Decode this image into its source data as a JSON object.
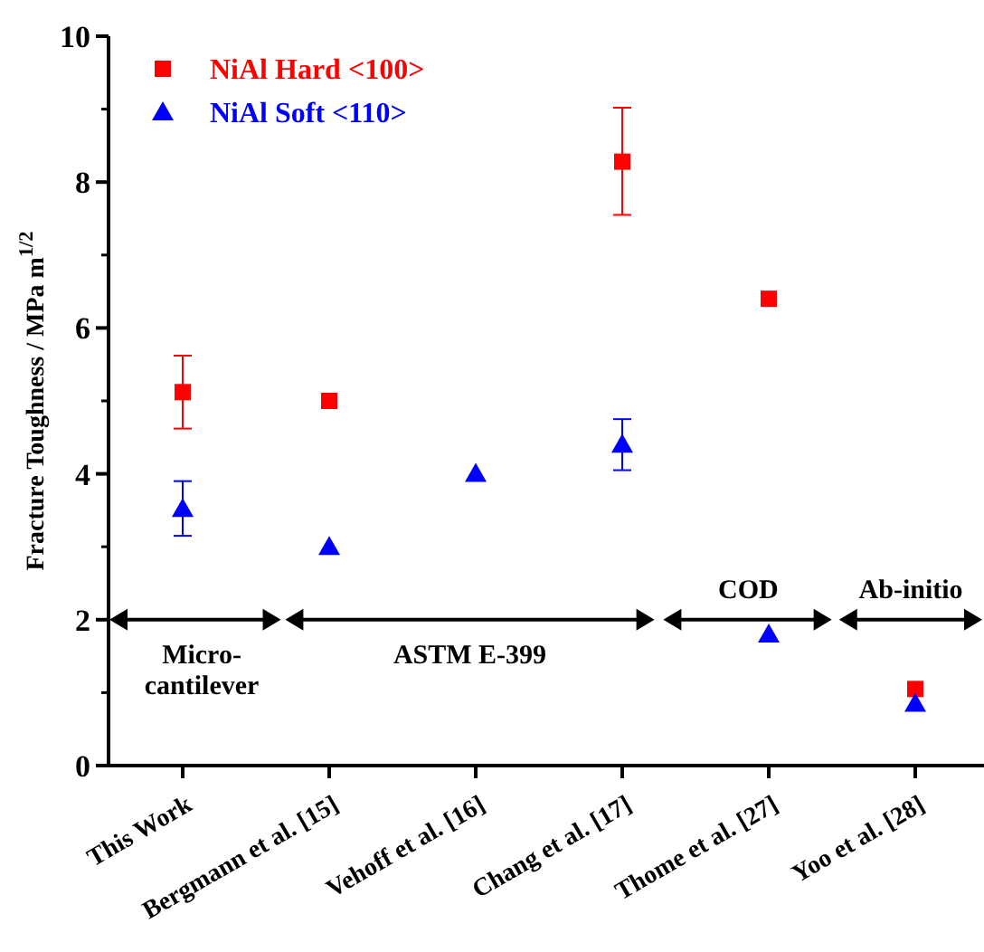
{
  "chart_data": {
    "type": "scatter",
    "ylabel": "Fracture Toughness / MPa m$^{1/2}$",
    "categories": [
      "This Work",
      "Bergmann et al. [15]",
      "Vehoff et al. [16]",
      "Chang et al. [17]",
      "Thome et al. [27]",
      "Yoo et al. [28]"
    ],
    "series": [
      {
        "name": "NiAl Hard <100>",
        "color": "#ff0000",
        "marker": "square",
        "values": [
          5.12,
          5.0,
          null,
          8.28,
          6.4,
          1.05
        ],
        "errors": [
          [
            4.62,
            5.62
          ],
          null,
          null,
          [
            7.55,
            9.02
          ],
          null,
          null
        ]
      },
      {
        "name": "NiAl Soft <110>",
        "color": "#0000ff",
        "marker": "triangle",
        "values": [
          3.52,
          3.0,
          4.0,
          4.4,
          1.8,
          0.85
        ],
        "errors": [
          [
            3.15,
            3.9
          ],
          null,
          null,
          [
            4.05,
            4.75
          ],
          null,
          null
        ]
      }
    ],
    "ylim": [
      0,
      10
    ],
    "yticks": [
      0,
      2,
      4,
      6,
      8,
      10
    ],
    "grid": false,
    "legend": "top left",
    "annotations": [
      "Micro-\ncantilever",
      "ASTM  E-399",
      "COD",
      "Ab-initio"
    ]
  }
}
